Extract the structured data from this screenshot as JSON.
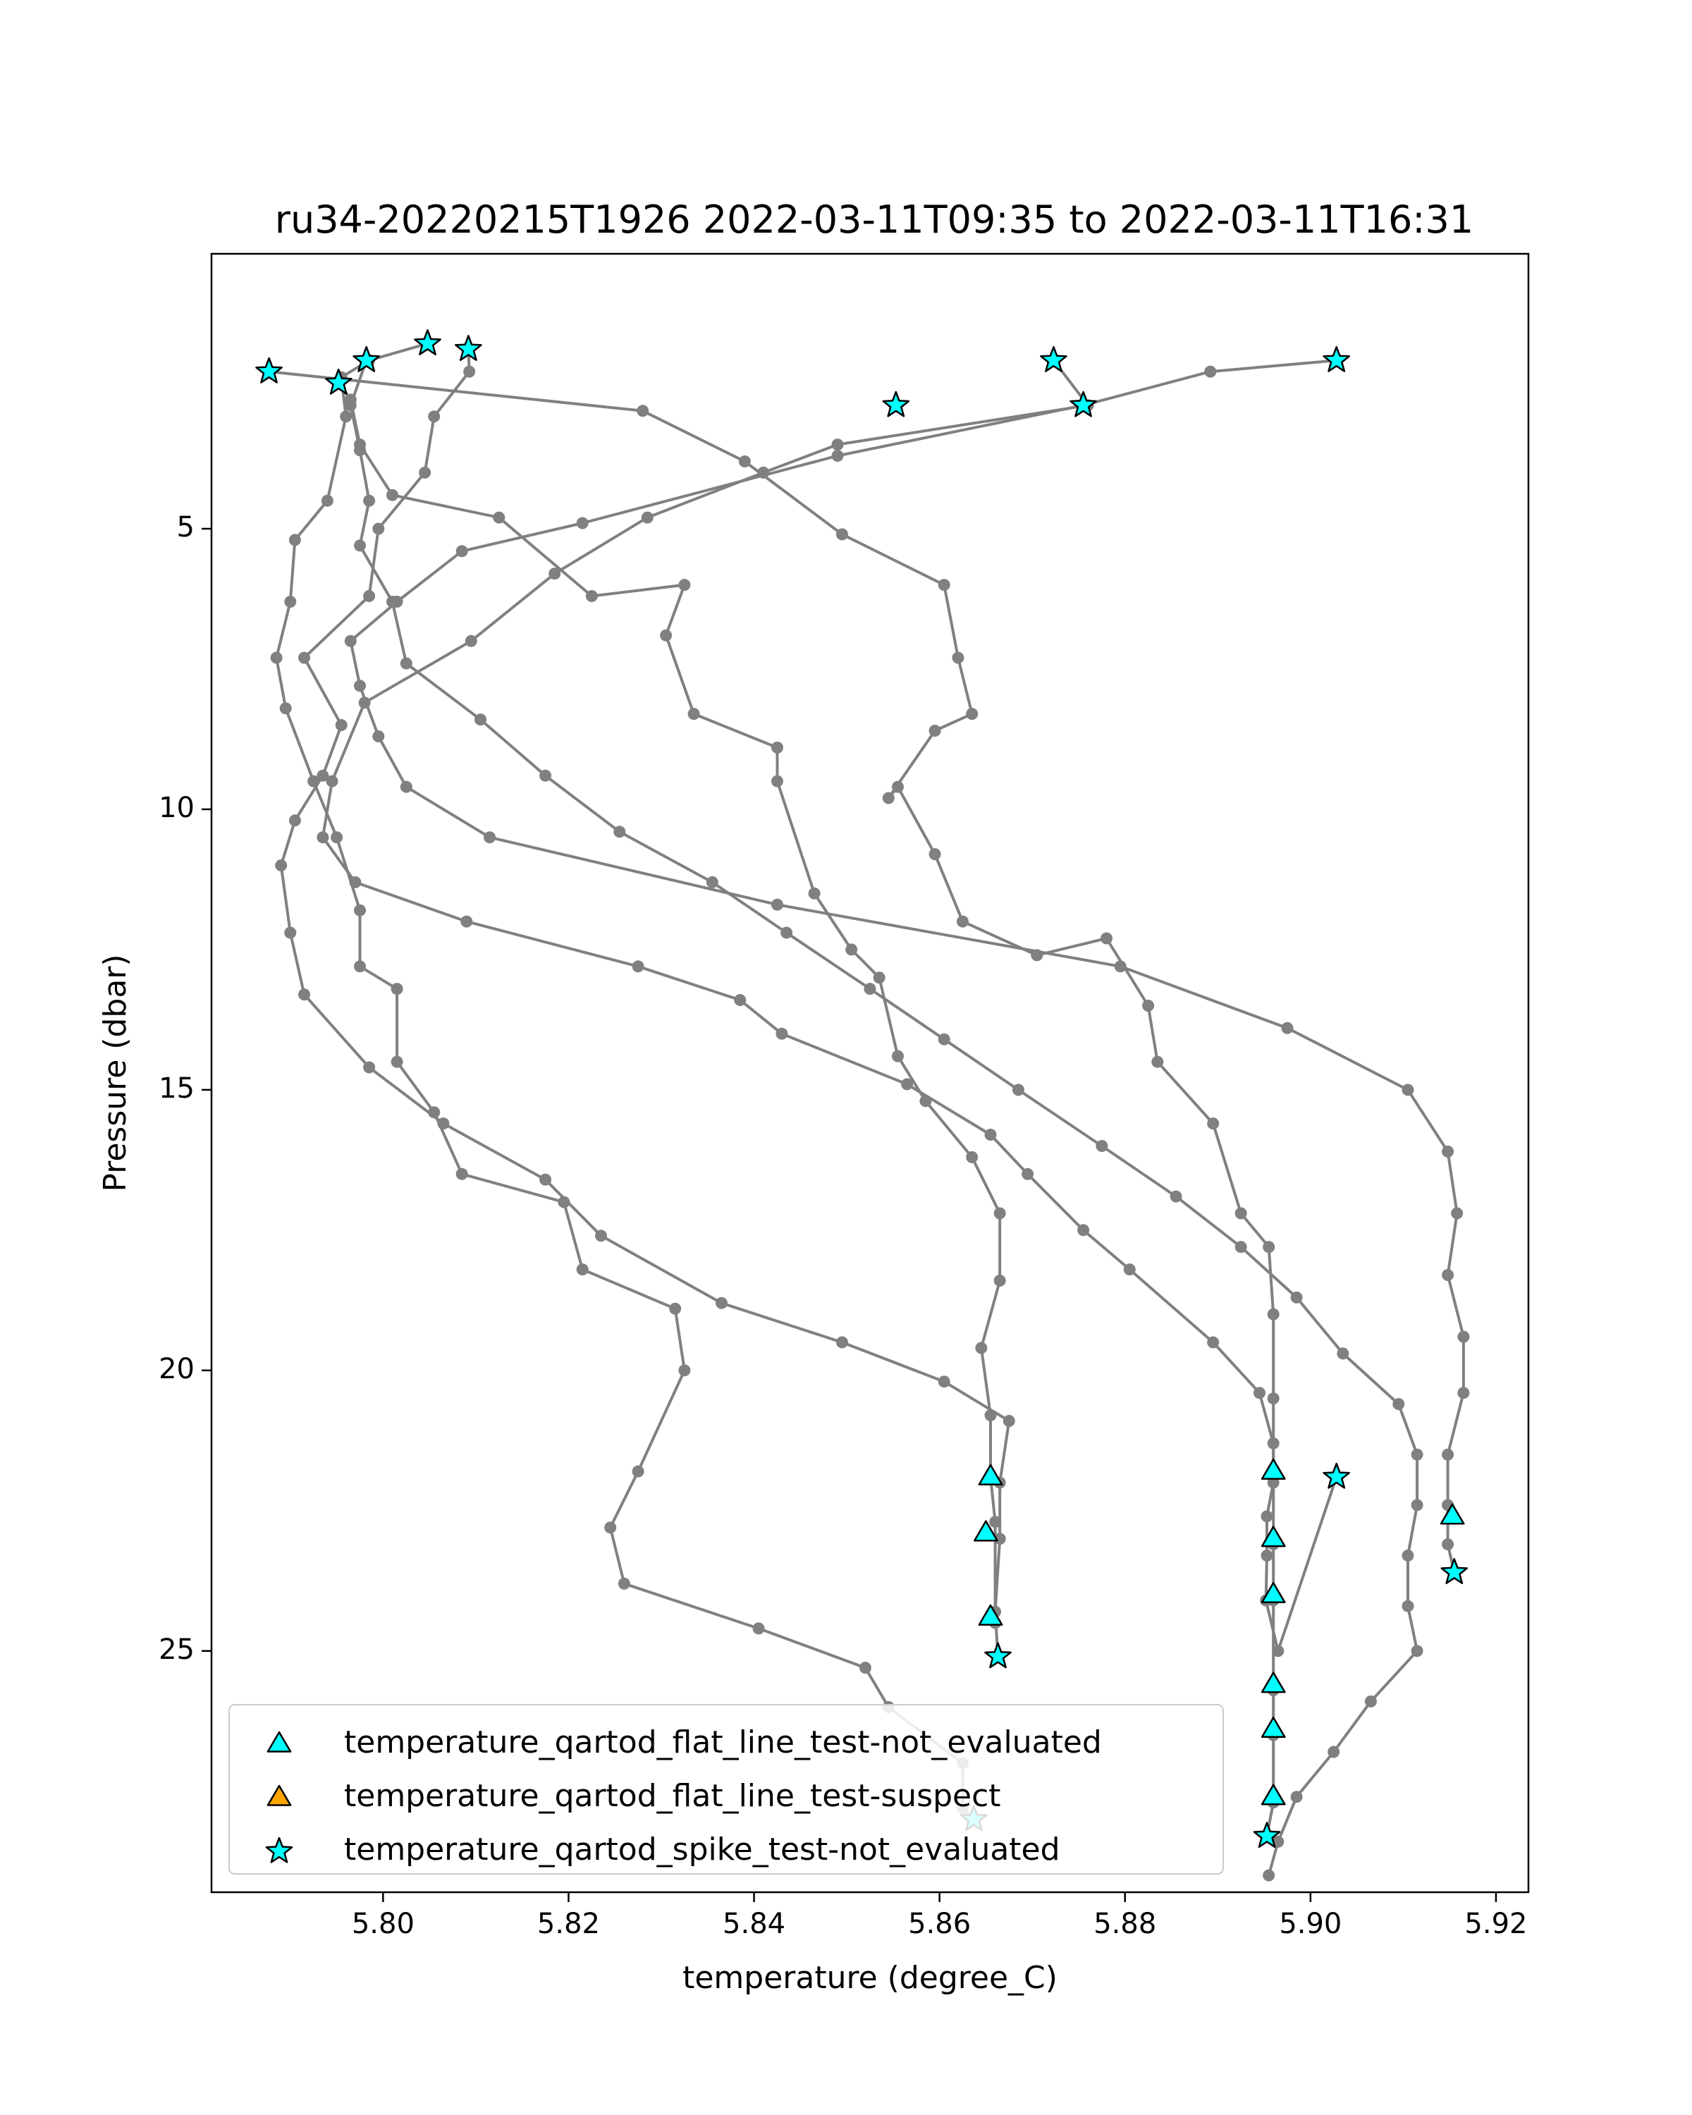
{
  "chart_data": {
    "type": "line",
    "title": "ru34-20220215T1926 2022-03-11T09:35 to 2022-03-11T16:31",
    "xlabel": "temperature (degree_C)",
    "ylabel": "Pressure (dbar)",
    "xlim": [
      5.7815,
      5.9235
    ],
    "ylim": [
      29.3,
      0.1
    ],
    "y_inverted": true,
    "xticks": [
      5.8,
      5.82,
      5.84,
      5.86,
      5.88,
      5.9,
      5.92
    ],
    "xtick_labels": [
      "5.80",
      "5.82",
      "5.84",
      "5.86",
      "5.88",
      "5.90",
      "5.92"
    ],
    "yticks": [
      5,
      10,
      15,
      20,
      25
    ],
    "ytick_labels": [
      "5",
      "10",
      "15",
      "20",
      "25"
    ],
    "grid": false,
    "legend_position": "lower-left",
    "profile_color": "#808080",
    "series": [
      {
        "x": [
          5.7877,
          5.828,
          5.839,
          5.8495,
          5.8605,
          5.862,
          5.8635,
          5.8595,
          5.8545,
          5.8555,
          5.8595,
          5.8625,
          5.8705,
          5.878,
          5.8825,
          5.8835,
          5.8895,
          5.8925,
          5.8955,
          5.896,
          5.896,
          5.896,
          5.896,
          5.896,
          5.896,
          5.896,
          5.896,
          5.8953
        ],
        "y": [
          2.2,
          2.9,
          3.8,
          5.1,
          6.0,
          7.3,
          8.3,
          8.6,
          9.8,
          9.6,
          10.8,
          12.0,
          12.6,
          12.3,
          13.5,
          14.5,
          15.6,
          17.2,
          17.8,
          19.0,
          20.5,
          21.8,
          23.1,
          24.1,
          25.7,
          26.5,
          27.7,
          28.3
        ]
      },
      {
        "x": [
          5.8048,
          5.7985,
          5.7955,
          5.796,
          5.794,
          5.7905,
          5.79,
          5.7885,
          5.7895,
          5.7925,
          5.795,
          5.7975,
          5.7975,
          5.8015,
          5.8015,
          5.8055,
          5.8085,
          5.8195,
          5.8215,
          5.8315,
          5.8325,
          5.8275,
          5.8245,
          5.826,
          5.8405,
          5.852,
          5.8545,
          5.8625,
          5.8625,
          5.8637
        ],
        "y": [
          1.7,
          2.0,
          2.3,
          3.0,
          4.5,
          5.2,
          6.3,
          7.3,
          8.2,
          9.5,
          10.5,
          11.8,
          12.8,
          13.2,
          14.5,
          15.4,
          16.5,
          17.0,
          18.2,
          18.9,
          20.0,
          21.8,
          22.8,
          23.8,
          24.6,
          25.3,
          26.0,
          27.0,
          27.8,
          28.0
        ]
      },
      {
        "x": [
          5.8723,
          5.876,
          5.849,
          5.841,
          5.8285,
          5.8185,
          5.8095,
          5.798,
          5.7945,
          5.7935,
          5.797,
          5.809,
          5.8275,
          5.8385,
          5.843,
          5.8565,
          5.8655,
          5.8695,
          5.8755,
          5.8805,
          5.8895,
          5.8945,
          5.896,
          5.896,
          5.8953,
          5.8953,
          5.8952,
          5.8965,
          5.9028
        ],
        "y": [
          2.0,
          2.8,
          3.5,
          4.0,
          4.8,
          5.8,
          7.0,
          8.1,
          9.5,
          10.5,
          11.3,
          12.0,
          12.8,
          13.4,
          14.0,
          14.9,
          15.8,
          16.5,
          17.5,
          18.2,
          19.5,
          20.4,
          21.3,
          22.0,
          22.6,
          23.3,
          24.1,
          25.0,
          21.9
        ]
      },
      {
        "x": [
          5.8092,
          5.8093,
          5.8055,
          5.8045,
          5.7995,
          5.7985,
          5.7915,
          5.7955,
          5.7935,
          5.7905,
          5.789,
          5.79,
          5.7915,
          5.7985,
          5.8065,
          5.8175,
          5.8235,
          5.8365,
          5.8495,
          5.8605,
          5.8675,
          5.8665,
          5.8665,
          5.866,
          5.8663
        ],
        "y": [
          1.8,
          2.2,
          3.0,
          4.0,
          5.0,
          6.2,
          7.3,
          8.5,
          9.4,
          10.2,
          11.0,
          12.2,
          13.3,
          14.6,
          15.6,
          16.6,
          17.6,
          18.8,
          19.5,
          20.2,
          20.9,
          22.0,
          23.0,
          24.3,
          25.1
        ]
      },
      {
        "x": [
          5.7952,
          5.7965,
          5.7975,
          5.801,
          5.8125,
          5.8225,
          5.8325,
          5.8305,
          5.8335,
          5.8425,
          5.8425,
          5.8465,
          5.8505,
          5.8535,
          5.8555,
          5.8585,
          5.8635,
          5.8665,
          5.8665,
          5.8645,
          5.8655,
          5.8655,
          5.866,
          5.866
        ],
        "y": [
          2.4,
          2.7,
          3.5,
          4.4,
          4.8,
          6.2,
          6.0,
          6.9,
          8.3,
          8.9,
          9.5,
          11.5,
          12.5,
          13.0,
          14.4,
          15.2,
          16.2,
          17.2,
          18.4,
          19.6,
          20.8,
          21.9,
          22.7,
          24.5
        ]
      },
      {
        "x": [
          5.7982,
          5.7965,
          5.7975,
          5.7985,
          5.7975,
          5.801,
          5.8025,
          5.8105,
          5.8175,
          5.8255,
          5.8355,
          5.8435,
          5.8525,
          5.8605,
          5.8685,
          5.8775,
          5.8855,
          5.8925,
          5.8985,
          5.9035,
          5.9095,
          5.9115,
          5.9115,
          5.9105,
          5.9105,
          5.9115,
          5.9065,
          5.9025,
          5.8985,
          5.8965,
          5.8955
        ],
        "y": [
          2.0,
          2.8,
          3.6,
          4.5,
          5.3,
          6.3,
          7.4,
          8.4,
          9.4,
          10.4,
          11.3,
          12.2,
          13.2,
          14.1,
          15.0,
          16.0,
          16.9,
          17.8,
          18.7,
          19.7,
          20.6,
          21.5,
          22.4,
          23.3,
          24.2,
          25.0,
          25.9,
          26.8,
          27.6,
          28.4,
          29.0
        ]
      },
      {
        "x": [
          5.9028,
          5.8892,
          5.8755,
          5.849,
          5.8215,
          5.8085,
          5.8015,
          5.7965,
          5.7975,
          5.7995,
          5.8025,
          5.8115,
          5.8425,
          5.8795,
          5.8975,
          5.9105,
          5.9148,
          5.9158,
          5.9148,
          5.9165,
          5.9165,
          5.9148,
          5.9148,
          5.9148,
          5.9155
        ],
        "y": [
          2.0,
          2.2,
          2.8,
          3.7,
          4.9,
          5.4,
          6.3,
          7.0,
          7.8,
          8.7,
          9.6,
          10.5,
          11.7,
          12.8,
          13.9,
          15.0,
          16.1,
          17.2,
          18.3,
          19.4,
          20.4,
          21.5,
          22.4,
          23.1,
          23.6
        ]
      }
    ],
    "markers": {
      "flat_line_not_evaluated": {
        "color": "#00ffff",
        "x": [
          5.8655,
          5.865,
          5.8655,
          5.896,
          5.896,
          5.896,
          5.896,
          5.896,
          5.896,
          5.9153
        ],
        "y": [
          21.9,
          22.9,
          24.4,
          21.8,
          23.0,
          24.0,
          25.6,
          26.4,
          27.6,
          22.6
        ]
      },
      "flat_line_suspect": {
        "color": "#ffa500",
        "x": [],
        "y": []
      },
      "spike_not_evaluated": {
        "color": "#00ffff",
        "x": [
          5.7877,
          5.8048,
          5.8092,
          5.7982,
          5.7952,
          5.8723,
          5.8755,
          5.8553,
          5.9028,
          5.9028,
          5.9155,
          5.8663,
          5.8637,
          5.8953
        ],
        "y": [
          2.2,
          1.7,
          1.8,
          2.0,
          2.4,
          2.0,
          2.8,
          2.8,
          2.0,
          21.9,
          23.6,
          25.1,
          28.0,
          28.3
        ]
      }
    },
    "legend": [
      {
        "key": "flat_line_not_evaluated",
        "label": "temperature_qartod_flat_line_test-not_evaluated",
        "marker": "triangle",
        "color": "#00ffff"
      },
      {
        "key": "flat_line_suspect",
        "label": "temperature_qartod_flat_line_test-suspect",
        "marker": "triangle",
        "color": "#ffa500"
      },
      {
        "key": "spike_not_evaluated",
        "label": "temperature_qartod_spike_test-not_evaluated",
        "marker": "star",
        "color": "#00ffff"
      }
    ]
  }
}
